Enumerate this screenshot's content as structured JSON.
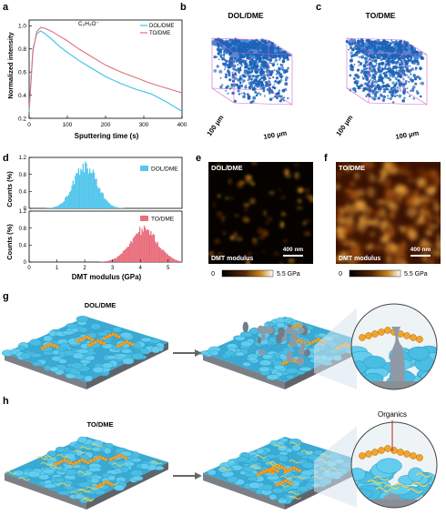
{
  "panels": {
    "a": "a",
    "b": "b",
    "c": "c",
    "d": "d",
    "e": "e",
    "f": "f",
    "g": "g",
    "h": "h"
  },
  "colors": {
    "dol": "#37c0e8",
    "to": "#e0707a",
    "bar_dol": "#54c6ec",
    "bar_to": "#e96f7c",
    "tomo_blue": "#1d63b8",
    "box": "#cc66cc",
    "sei_blue": "#49bde3",
    "sei_orange": "#f2a42b",
    "substrate": "#8a8f96"
  },
  "panel_a": {
    "annotation": "C₂H₃O⁻",
    "chart_data": {
      "type": "line",
      "xlabel": "Sputtering time (s)",
      "ylabel": "Normalized intensity",
      "xlim": [
        0,
        400
      ],
      "ylim": [
        0.2,
        1.05
      ],
      "xticks": [
        0,
        100,
        200,
        300,
        400
      ],
      "yticks": [
        0.2,
        0.4,
        0.6,
        0.8,
        1.0
      ],
      "legend_position": "top-right",
      "series": [
        {
          "name": "DOL/DME",
          "x": [
            0,
            10,
            20,
            30,
            40,
            60,
            80,
            100,
            130,
            160,
            200,
            240,
            280,
            320,
            360,
            400
          ],
          "values": [
            0.25,
            0.8,
            0.93,
            0.955,
            0.935,
            0.88,
            0.82,
            0.77,
            0.7,
            0.64,
            0.56,
            0.5,
            0.45,
            0.41,
            0.34,
            0.26
          ]
        },
        {
          "name": "TO/DME",
          "x": [
            0,
            10,
            20,
            30,
            40,
            60,
            80,
            100,
            130,
            160,
            200,
            240,
            280,
            320,
            360,
            400
          ],
          "values": [
            0.28,
            0.78,
            0.95,
            0.985,
            0.98,
            0.95,
            0.91,
            0.87,
            0.8,
            0.74,
            0.66,
            0.6,
            0.55,
            0.5,
            0.46,
            0.42
          ]
        }
      ]
    }
  },
  "panel_b": {
    "title": "DOL/DME",
    "scale_left": "100 μm",
    "scale_right": "100 μm"
  },
  "panel_c": {
    "title": "TO/DME",
    "scale_left": "100 μm",
    "scale_right": "100 μm"
  },
  "panel_d": {
    "xlabel": "DMT modulus (GPa)",
    "chart_data": [
      {
        "type": "bar",
        "name": "DOL/DME",
        "ylabel": "Counts (%)",
        "ylim": [
          0,
          1.2
        ],
        "yticks": [
          0,
          0.4,
          0.8,
          1.2
        ],
        "xlim": [
          0,
          5.5
        ],
        "center": 2.0,
        "sigma": 0.42,
        "peak": 1.0
      },
      {
        "type": "bar",
        "name": "TO/DME",
        "ylabel": "Counts (%)",
        "ylim": [
          0,
          1.2
        ],
        "yticks": [
          0,
          0.4,
          0.8,
          1.2
        ],
        "xlim": [
          0,
          5.5
        ],
        "xticks": [
          0,
          1,
          2,
          3,
          4,
          5
        ],
        "center": 4.1,
        "sigma": 0.5,
        "peak": 0.75
      }
    ]
  },
  "panel_e": {
    "title": "DOL/DME",
    "caption": "DMT modulus",
    "scale": "400 nm",
    "cbar_min": "0",
    "cbar_max": "5.5 GPa"
  },
  "panel_f": {
    "title": "TO/DME",
    "caption": "DMT modulus",
    "scale": "400 nm",
    "cbar_min": "0",
    "cbar_max": "5.5 GPa"
  },
  "panel_g": {
    "title": "DOL/DME"
  },
  "panel_h": {
    "title": "TO/DME",
    "callout": "Organics"
  }
}
